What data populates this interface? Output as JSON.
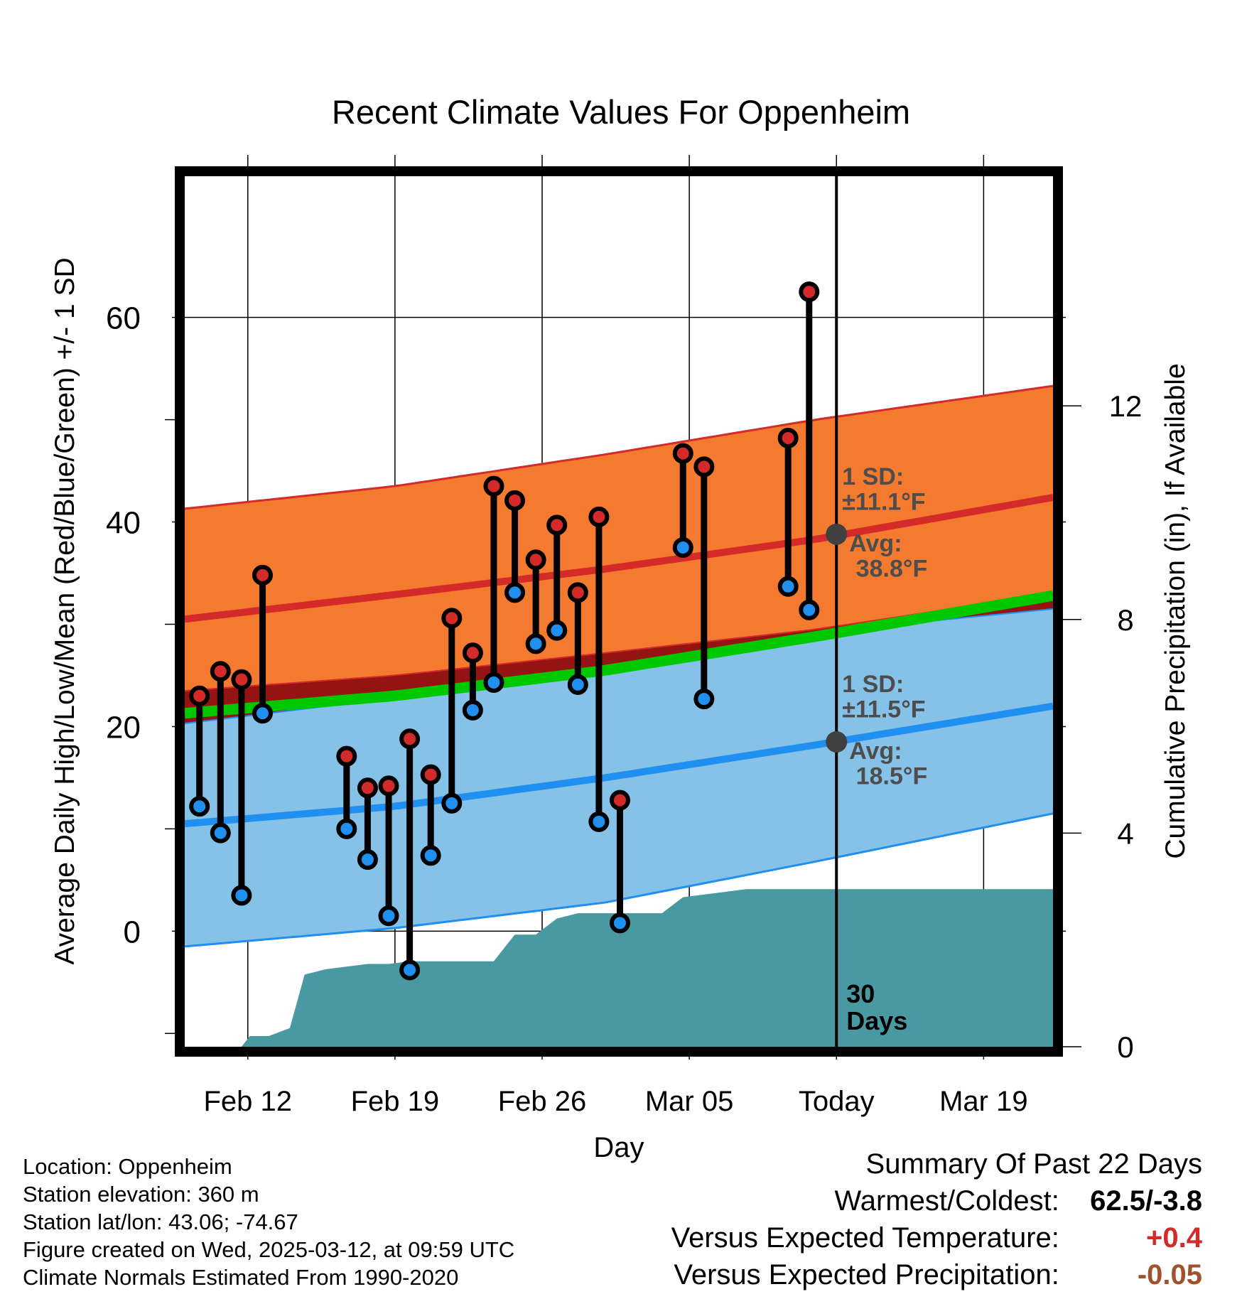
{
  "chart_data": {
    "type": "line",
    "title": "Recent Climate Values For Oppenheim",
    "xlabel": "Day",
    "ylabel": "Average Daily High/Low/Mean (Red/Blue/Green) +/- 1 SD",
    "y2label": "Cumulative Precipitation (in), If Available",
    "xtick_labels": [
      "Feb 12",
      "Feb 19",
      "Feb 26",
      "Mar 05",
      "Today",
      "Mar 19"
    ],
    "xtick_days": [
      3,
      10,
      17,
      24,
      31,
      38
    ],
    "x_start_date": "Feb 09",
    "xlim": [
      0,
      41.3
    ],
    "ylim": [
      -11.3,
      73.8
    ],
    "yticks": [
      0,
      20,
      40,
      60
    ],
    "y2lim": [
      0,
      16.3
    ],
    "y2ticks": [
      0,
      4,
      8,
      12
    ],
    "grid": true,
    "today_marker_day": 31,
    "window_label": "30\nDays",
    "colors": {
      "high": "#d42a2a",
      "high_band": "#f47a30",
      "low": "#1f8ff0",
      "low_band": "#86c2e8",
      "mean": "#00c800",
      "precip": "#4899a2",
      "today_dot": "#404040",
      "annotation": "#4d4d4d"
    },
    "normals": {
      "days": [
        0,
        10,
        20,
        30,
        41.3
      ],
      "high_avg": [
        30.5,
        32.9,
        35.4,
        38.3,
        42.4
      ],
      "high_band_upper": [
        41.3,
        43.5,
        46.6,
        50.0,
        53.3
      ],
      "high_band_lower": [
        23.5,
        25.0,
        27.2,
        29.5,
        33.0
      ],
      "low_avg": [
        10.5,
        12.2,
        15.0,
        18.2,
        22.0
      ],
      "low_band_upper": [
        20.3,
        22.8,
        25.8,
        29.2,
        31.5
      ],
      "low_band_lower": [
        -1.5,
        0.3,
        2.8,
        6.8,
        11.5
      ],
      "mean": [
        21.3,
        23.0,
        25.5,
        28.8,
        32.8
      ]
    },
    "today_annotations": {
      "high_sd": "1 SD:\n±11.1°F",
      "high_avg": "Avg:\n 38.8°F",
      "low_sd": "1 SD:\n±11.5°F",
      "low_avg": "Avg:\n 18.5°F",
      "high_avg_value": 38.8,
      "low_avg_value": 18.5
    },
    "daily": [
      {
        "day": 0.7,
        "high": 23.0,
        "low": 12.2
      },
      {
        "day": 1.7,
        "high": 25.4,
        "low": 9.6
      },
      {
        "day": 2.7,
        "high": 24.6,
        "low": 3.5
      },
      {
        "day": 3.7,
        "high": 34.8,
        "low": 21.3
      },
      {
        "day": 7.7,
        "high": 17.1,
        "low": 10.0
      },
      {
        "day": 8.7,
        "high": 14.0,
        "low": 7.0
      },
      {
        "day": 9.7,
        "high": 14.2,
        "low": 1.5
      },
      {
        "day": 10.7,
        "high": 18.8,
        "low": -3.8
      },
      {
        "day": 11.7,
        "high": 15.3,
        "low": 7.4
      },
      {
        "day": 12.7,
        "high": 30.6,
        "low": 12.5
      },
      {
        "day": 13.7,
        "high": 27.2,
        "low": 21.6
      },
      {
        "day": 14.7,
        "high": 43.5,
        "low": 24.3
      },
      {
        "day": 15.7,
        "high": 42.1,
        "low": 33.1
      },
      {
        "day": 16.7,
        "high": 36.3,
        "low": 28.1
      },
      {
        "day": 17.7,
        "high": 39.7,
        "low": 29.4
      },
      {
        "day": 18.7,
        "high": 33.1,
        "low": 24.1
      },
      {
        "day": 19.7,
        "high": 40.5,
        "low": 10.7
      },
      {
        "day": 20.7,
        "high": 12.8,
        "low": 0.8
      },
      {
        "day": 23.7,
        "high": 46.7,
        "low": 37.5
      },
      {
        "day": 24.7,
        "high": 45.4,
        "low": 22.7
      },
      {
        "day": 28.7,
        "high": 48.2,
        "low": 33.7
      },
      {
        "day": 29.7,
        "high": 62.5,
        "low": 31.4
      }
    ],
    "precip": {
      "days": [
        0,
        2.7,
        3.1,
        4.0,
        5.0,
        5.7,
        6.7,
        7.7,
        8.7,
        9.7,
        10.7,
        14.7,
        15.7,
        16.7,
        17.7,
        18.7,
        20.7,
        22.7,
        23.7,
        25.7,
        26.7,
        30.7,
        41.3
      ],
      "values": [
        0,
        0,
        0.2,
        0.2,
        0.35,
        1.35,
        1.45,
        1.5,
        1.55,
        1.55,
        1.6,
        1.6,
        2.1,
        2.1,
        2.4,
        2.5,
        2.5,
        2.5,
        2.8,
        2.9,
        2.95,
        2.95,
        2.95
      ]
    }
  },
  "info": {
    "location": "Location: Oppenheim",
    "elevation": "Station elevation: 360 m",
    "latlon": "Station lat/lon: 43.06; -74.67",
    "created": "Figure created on Wed, 2025-03-12, at 09:59 UTC",
    "normals_period": "Climate Normals Estimated From 1990-2020"
  },
  "summary": {
    "title": "Summary Of Past 22 Days",
    "warm_cold_label": "Warmest/Coldest:",
    "warm_cold_value": "62.5/-3.8",
    "temp_label": "Versus Expected Temperature:",
    "temp_value": "+0.4",
    "temp_color": "#d42a2a",
    "precip_label": "Versus Expected Precipitation:",
    "precip_value": "-0.05",
    "precip_color": "#a0522d"
  }
}
